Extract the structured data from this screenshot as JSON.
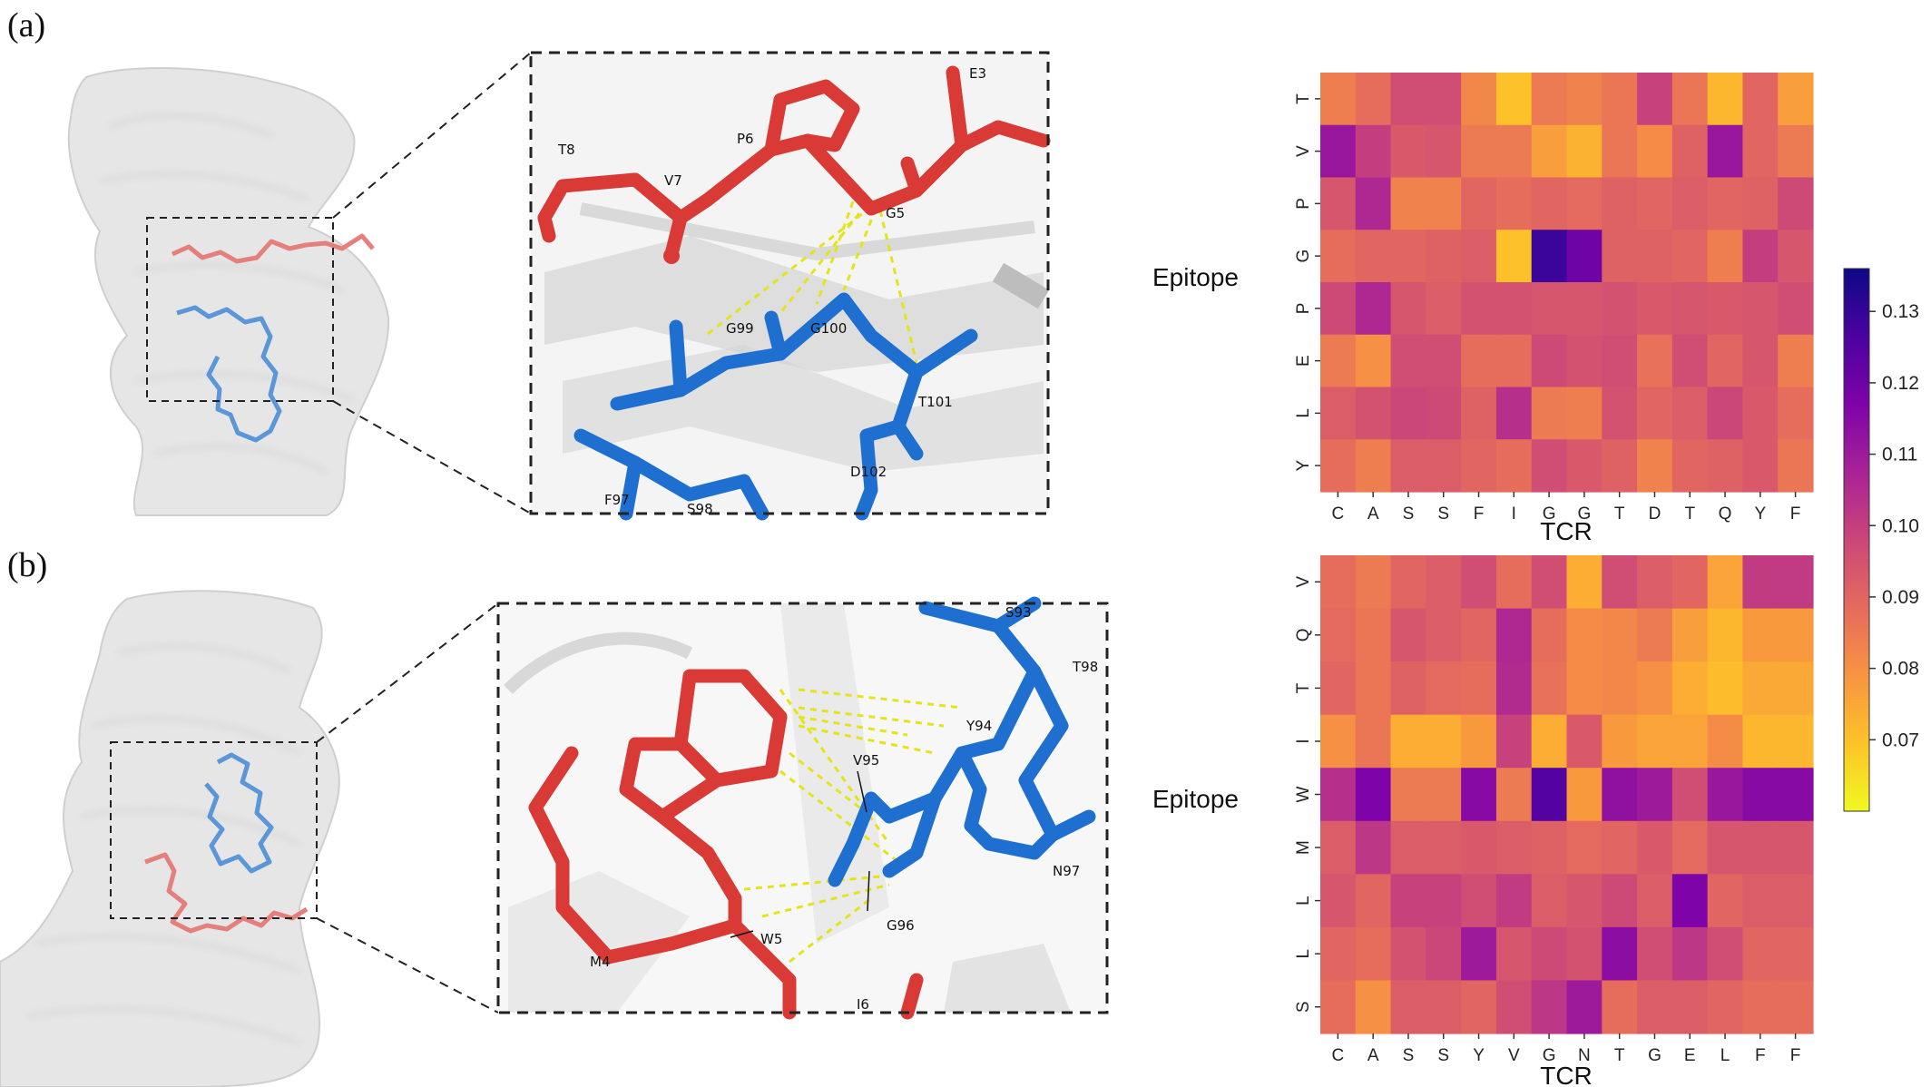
{
  "panels": [
    {
      "label": "(a)",
      "structure_labels": {
        "epitope": [
          "E3",
          "P6",
          "T8",
          "V7",
          "G5"
        ],
        "tcr": [
          "G99",
          "G100",
          "T101",
          "D102",
          "F97",
          "S98"
        ]
      },
      "heatmap": {
        "x_tick_labels": [
          "C",
          "A",
          "S",
          "S",
          "F",
          "I",
          "G",
          "G",
          "T",
          "D",
          "T",
          "Q",
          "Y",
          "F"
        ],
        "y_tick_labels": [
          "T",
          "V",
          "P",
          "G",
          "P",
          "E",
          "L",
          "Y"
        ],
        "xlabel": "TCR",
        "ylabel": "Epitope"
      }
    },
    {
      "label": "(b)",
      "structure_labels": {
        "epitope": [
          "W5",
          "M4",
          "I6"
        ],
        "tcr": [
          "S93",
          "T98",
          "Y94",
          "V95",
          "G96",
          "N97"
        ]
      },
      "heatmap": {
        "x_tick_labels": [
          "C",
          "A",
          "S",
          "S",
          "Y",
          "V",
          "G",
          "N",
          "T",
          "G",
          "E",
          "L",
          "F",
          "F"
        ],
        "y_tick_labels": [
          "V",
          "Q",
          "T",
          "I",
          "W",
          "M",
          "L",
          "L",
          "S"
        ],
        "xlabel": "TCR",
        "ylabel": "Epitope"
      }
    }
  ],
  "colorbar": {
    "colormap": "plasma_r",
    "min": 0.06,
    "max": 0.136,
    "ticks": [
      "0.07",
      "0.08",
      "0.09",
      "0.10",
      "0.11",
      "0.12",
      "0.13"
    ],
    "tick_values": [
      0.07,
      0.08,
      0.09,
      0.1,
      0.11,
      0.12,
      0.13
    ]
  },
  "colors": {
    "epitope_stick": "#d93a35",
    "tcr_stick": "#1f6fd1",
    "hbond": "#e4e41a",
    "surface": "#e6e6e6"
  },
  "chart_data": [
    {
      "type": "heatmap",
      "title": "",
      "xlabel": "TCR",
      "ylabel": "Epitope",
      "x": [
        "C",
        "A",
        "S",
        "S",
        "F",
        "I",
        "G",
        "G",
        "T",
        "D",
        "T",
        "Q",
        "Y",
        "F"
      ],
      "y": [
        "T",
        "V",
        "P",
        "G",
        "P",
        "E",
        "L",
        "Y"
      ],
      "values": [
        [
          0.084,
          0.088,
          0.096,
          0.096,
          0.082,
          0.07,
          0.085,
          0.083,
          0.086,
          0.099,
          0.086,
          0.072,
          0.09,
          0.077
        ],
        [
          0.111,
          0.1,
          0.093,
          0.094,
          0.085,
          0.085,
          0.077,
          0.073,
          0.086,
          0.081,
          0.091,
          0.111,
          0.09,
          0.085
        ],
        [
          0.094,
          0.106,
          0.083,
          0.083,
          0.09,
          0.088,
          0.09,
          0.089,
          0.091,
          0.09,
          0.092,
          0.09,
          0.091,
          0.097
        ],
        [
          0.088,
          0.09,
          0.09,
          0.091,
          0.092,
          0.07,
          0.129,
          0.12,
          0.091,
          0.091,
          0.09,
          0.084,
          0.1,
          0.094
        ],
        [
          0.097,
          0.106,
          0.094,
          0.092,
          0.095,
          0.095,
          0.094,
          0.094,
          0.095,
          0.093,
          0.094,
          0.093,
          0.094,
          0.096
        ],
        [
          0.085,
          0.08,
          0.096,
          0.096,
          0.088,
          0.088,
          0.097,
          0.095,
          0.096,
          0.087,
          0.096,
          0.09,
          0.094,
          0.084
        ],
        [
          0.092,
          0.095,
          0.098,
          0.097,
          0.091,
          0.104,
          0.085,
          0.084,
          0.095,
          0.09,
          0.092,
          0.098,
          0.093,
          0.088
        ],
        [
          0.088,
          0.084,
          0.092,
          0.092,
          0.09,
          0.088,
          0.096,
          0.093,
          0.091,
          0.083,
          0.09,
          0.091,
          0.093,
          0.086
        ]
      ]
    },
    {
      "type": "heatmap",
      "title": "",
      "xlabel": "TCR",
      "ylabel": "Epitope",
      "x": [
        "C",
        "A",
        "S",
        "S",
        "Y",
        "V",
        "G",
        "N",
        "T",
        "G",
        "E",
        "L",
        "F",
        "F"
      ],
      "y": [
        "V",
        "Q",
        "T",
        "I",
        "W",
        "M",
        "L",
        "L",
        "S"
      ],
      "values": [
        [
          0.088,
          0.085,
          0.09,
          0.092,
          0.096,
          0.088,
          0.096,
          0.074,
          0.096,
          0.092,
          0.09,
          0.076,
          0.101,
          0.101
        ],
        [
          0.089,
          0.086,
          0.094,
          0.092,
          0.09,
          0.106,
          0.088,
          0.081,
          0.082,
          0.085,
          0.077,
          0.072,
          0.078,
          0.078
        ],
        [
          0.09,
          0.086,
          0.091,
          0.089,
          0.088,
          0.105,
          0.087,
          0.081,
          0.082,
          0.08,
          0.074,
          0.071,
          0.075,
          0.075
        ],
        [
          0.08,
          0.086,
          0.074,
          0.074,
          0.078,
          0.099,
          0.074,
          0.093,
          0.078,
          0.076,
          0.076,
          0.081,
          0.072,
          0.072
        ],
        [
          0.104,
          0.117,
          0.085,
          0.085,
          0.115,
          0.085,
          0.125,
          0.078,
          0.113,
          0.11,
          0.096,
          0.111,
          0.115,
          0.115
        ],
        [
          0.092,
          0.102,
          0.092,
          0.092,
          0.093,
          0.092,
          0.091,
          0.089,
          0.09,
          0.093,
          0.089,
          0.094,
          0.094,
          0.094
        ],
        [
          0.094,
          0.09,
          0.099,
          0.099,
          0.096,
          0.101,
          0.092,
          0.094,
          0.097,
          0.092,
          0.117,
          0.09,
          0.092,
          0.092
        ],
        [
          0.09,
          0.088,
          0.095,
          0.098,
          0.11,
          0.094,
          0.097,
          0.095,
          0.114,
          0.096,
          0.102,
          0.096,
          0.09,
          0.09
        ],
        [
          0.088,
          0.08,
          0.092,
          0.092,
          0.09,
          0.096,
          0.102,
          0.11,
          0.088,
          0.092,
          0.092,
          0.09,
          0.088,
          0.088
        ]
      ]
    }
  ]
}
